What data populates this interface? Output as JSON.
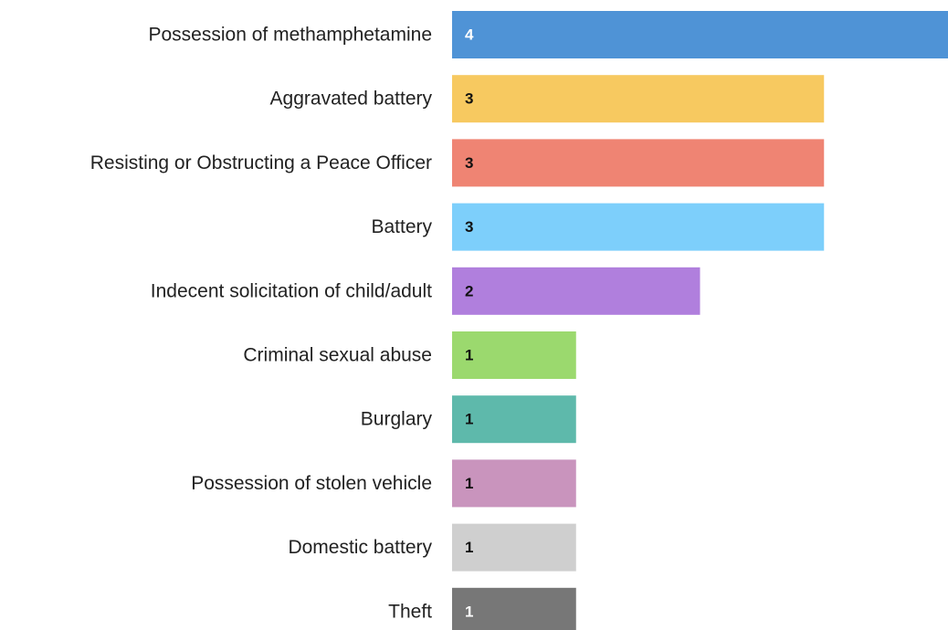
{
  "chart_data": {
    "type": "bar",
    "orientation": "horizontal",
    "title": "",
    "xlabel": "",
    "ylabel": "",
    "xlim": [
      0,
      4
    ],
    "grid": false,
    "legend": "none",
    "categories": [
      "Possession of methamphetamine",
      "Aggravated battery",
      "Resisting or Obstructing a Peace Officer",
      "Battery",
      "Indecent solicitation of child/adult",
      "Criminal sexual abuse",
      "Burglary",
      "Possession of stolen vehicle",
      "Domestic battery",
      "Theft"
    ],
    "values": [
      4,
      3,
      3,
      3,
      2,
      1,
      1,
      1,
      1,
      1
    ],
    "value_labels": [
      "4",
      "3",
      "3",
      "3",
      "2",
      "1",
      "1",
      "1",
      "1",
      "1"
    ],
    "colors": [
      "#4f93d6",
      "#f7c960",
      "#ef8473",
      "#7dcffb",
      "#b07fdd",
      "#9bd96e",
      "#5eb9ab",
      "#c994bd",
      "#cfcfcf",
      "#777777"
    ],
    "label_colors": [
      "#ffffff",
      "#111111",
      "#111111",
      "#111111",
      "#111111",
      "#111111",
      "#111111",
      "#111111",
      "#111111",
      "#ffffff"
    ]
  }
}
